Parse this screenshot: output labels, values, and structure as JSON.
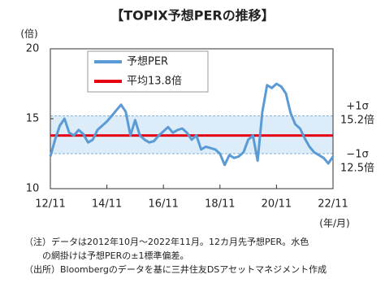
{
  "chart_data": {
    "type": "line",
    "title": "【TOPIX予想PERの推移】",
    "y_unit": "(倍)",
    "x_label": "(年/月)",
    "categories": [
      "12/11",
      null,
      null,
      null,
      null,
      null,
      null,
      null,
      null,
      null,
      null,
      null,
      "14/11",
      null,
      null,
      null,
      null,
      null,
      null,
      null,
      null,
      null,
      null,
      null,
      "16/11",
      null,
      null,
      null,
      null,
      null,
      null,
      null,
      null,
      null,
      null,
      null,
      "18/11",
      null,
      null,
      null,
      null,
      null,
      null,
      null,
      null,
      null,
      null,
      null,
      "20/11",
      null,
      null,
      null,
      null,
      null,
      null,
      null,
      null,
      null,
      null,
      null,
      "22/11"
    ],
    "series": [
      {
        "name": "予想PER",
        "color": "#5b9bd5",
        "values": [
          12.3,
          13.5,
          14.5,
          15.0,
          14.0,
          13.8,
          14.2,
          13.9,
          13.3,
          13.5,
          14.2,
          14.5,
          14.8,
          15.2,
          15.6,
          16.0,
          15.5,
          13.8,
          14.9,
          13.8,
          13.5,
          13.3,
          13.4,
          13.8,
          14.1,
          14.4,
          14.0,
          14.2,
          14.3,
          14.0,
          13.5,
          13.8,
          12.8,
          13.0,
          12.9,
          12.8,
          12.5,
          11.7,
          12.4,
          12.2,
          12.3,
          12.6,
          13.5,
          13.8,
          12.0,
          15.5,
          17.4,
          17.2,
          17.5,
          17.3,
          16.8,
          15.4,
          14.6,
          14.3,
          13.6,
          13.0,
          12.6,
          12.4,
          12.2,
          11.8,
          12.3
        ]
      }
    ],
    "average": {
      "value": 13.8,
      "label": "平均13.8倍",
      "color": "#e60012"
    },
    "band": {
      "color": "#dcecf8",
      "upper": {
        "value": 15.2,
        "sigma": "+1σ",
        "label": "15.2倍"
      },
      "lower": {
        "value": 12.5,
        "sigma": "−1σ",
        "label": "12.5倍"
      }
    },
    "ylim": [
      10,
      20
    ],
    "yticks": [
      10,
      15,
      20
    ],
    "notes": [
      "（注）データは2012年10月～2022年11月。12カ月先予想PER。水色",
      "　　の網掛けは予想PERの±1標準偏差。",
      "（出所）Bloombergのデータを基に三井住友DSアセットマネジメント作成"
    ]
  }
}
